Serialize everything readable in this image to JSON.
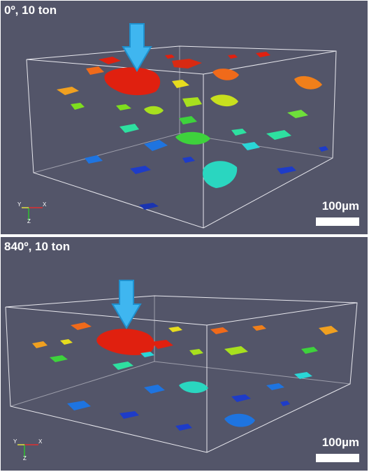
{
  "panels": [
    {
      "title": "0º, 10 ton",
      "scale_label": "100µm",
      "axis_labels": {
        "x": "X",
        "y": "Y",
        "z": "Z"
      }
    },
    {
      "title": "840º, 10 ton",
      "scale_label": "100µm",
      "axis_labels": {
        "x": "X",
        "y": "Y",
        "z": "Z"
      }
    }
  ],
  "colors": {
    "background": "#535569",
    "arrow": "#3fb6f0",
    "bounding_box": "#e8e8ee",
    "pore_palette": [
      "#e0200f",
      "#f06a1a",
      "#f0a020",
      "#e6dc1e",
      "#a8e01e",
      "#3ed23c",
      "#2ee0a0",
      "#2ad6d6",
      "#1e74e0",
      "#1e3cc8"
    ]
  }
}
